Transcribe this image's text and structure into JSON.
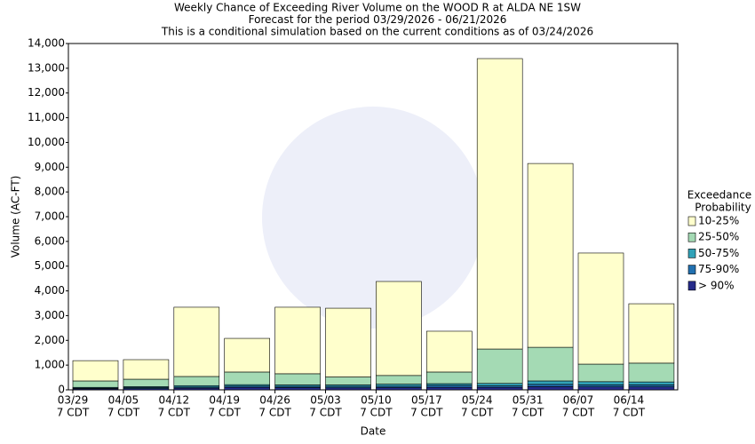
{
  "chart_data": {
    "type": "stacked_bar",
    "title_lines": [
      "Weekly Chance of Exceeding River Volume on the WOOD R at ALDA NE 1SW",
      "Forecast for the period 03/29/2026 - 06/21/2026",
      "This is a conditional simulation based on the current conditions as of 03/24/2026"
    ],
    "x_label": "Date",
    "y_label": "Volume (AC-FT)",
    "categories": [
      "03/29",
      "04/05",
      "04/12",
      "04/19",
      "04/26",
      "05/03",
      "05/10",
      "05/17",
      "05/24",
      "05/31",
      "06/07",
      "06/14"
    ],
    "category_sublabels": [
      "7 CDT",
      "7 CDT",
      "7 CDT",
      "7 CDT",
      "7 CDT",
      "7 CDT",
      "7 CDT",
      "7 CDT",
      "7 CDT",
      "7 CDT",
      "7 CDT",
      "7 CDT"
    ],
    "legend_title_lines": [
      "Exceedance",
      "Probability"
    ],
    "legend": "right",
    "series": [
      {
        "name": "> 90%",
        "color": "#262b8a",
        "values": [
          40,
          50,
          70,
          100,
          90,
          80,
          90,
          100,
          100,
          130,
          120,
          120
        ]
      },
      {
        "name": "75-90%",
        "color": "#2170b0",
        "values": [
          30,
          40,
          40,
          50,
          50,
          60,
          60,
          80,
          60,
          90,
          80,
          80
        ]
      },
      {
        "name": "50-75%",
        "color": "#31a2b8",
        "values": [
          30,
          40,
          60,
          60,
          60,
          60,
          80,
          70,
          100,
          140,
          130,
          120
        ]
      },
      {
        "name": "25-50%",
        "color": "#a4dab4",
        "values": [
          260,
          300,
          370,
          510,
          450,
          320,
          350,
          470,
          1390,
          1360,
          710,
          760
        ]
      },
      {
        "name": "10-25%",
        "color": "#ffffcc",
        "values": [
          820,
          790,
          2800,
          1360,
          2690,
          2780,
          3800,
          1650,
          11740,
          7430,
          4490,
          2400
        ]
      }
    ],
    "ylim": [
      0,
      14000
    ],
    "yticks": [
      0,
      {
        "value": 1000,
        "label": "1,000"
      },
      {
        "value": 2000,
        "label": "2,000"
      },
      {
        "value": 3000,
        "label": "3,000"
      },
      {
        "value": 4000,
        "label": "4,000"
      },
      {
        "value": 5000,
        "label": "5,000"
      },
      {
        "value": 6000,
        "label": "6,000"
      },
      {
        "value": 7000,
        "label": "7,000"
      },
      {
        "value": 8000,
        "label": "8,000"
      },
      {
        "value": 9000,
        "label": "9,000"
      },
      {
        "value": 10000,
        "label": "10,000"
      },
      {
        "value": 11000,
        "label": "11,000"
      },
      {
        "value": 12000,
        "label": "12,000"
      },
      {
        "value": 13000,
        "label": "13,000"
      },
      {
        "value": 14000,
        "label": "14,000"
      }
    ]
  }
}
